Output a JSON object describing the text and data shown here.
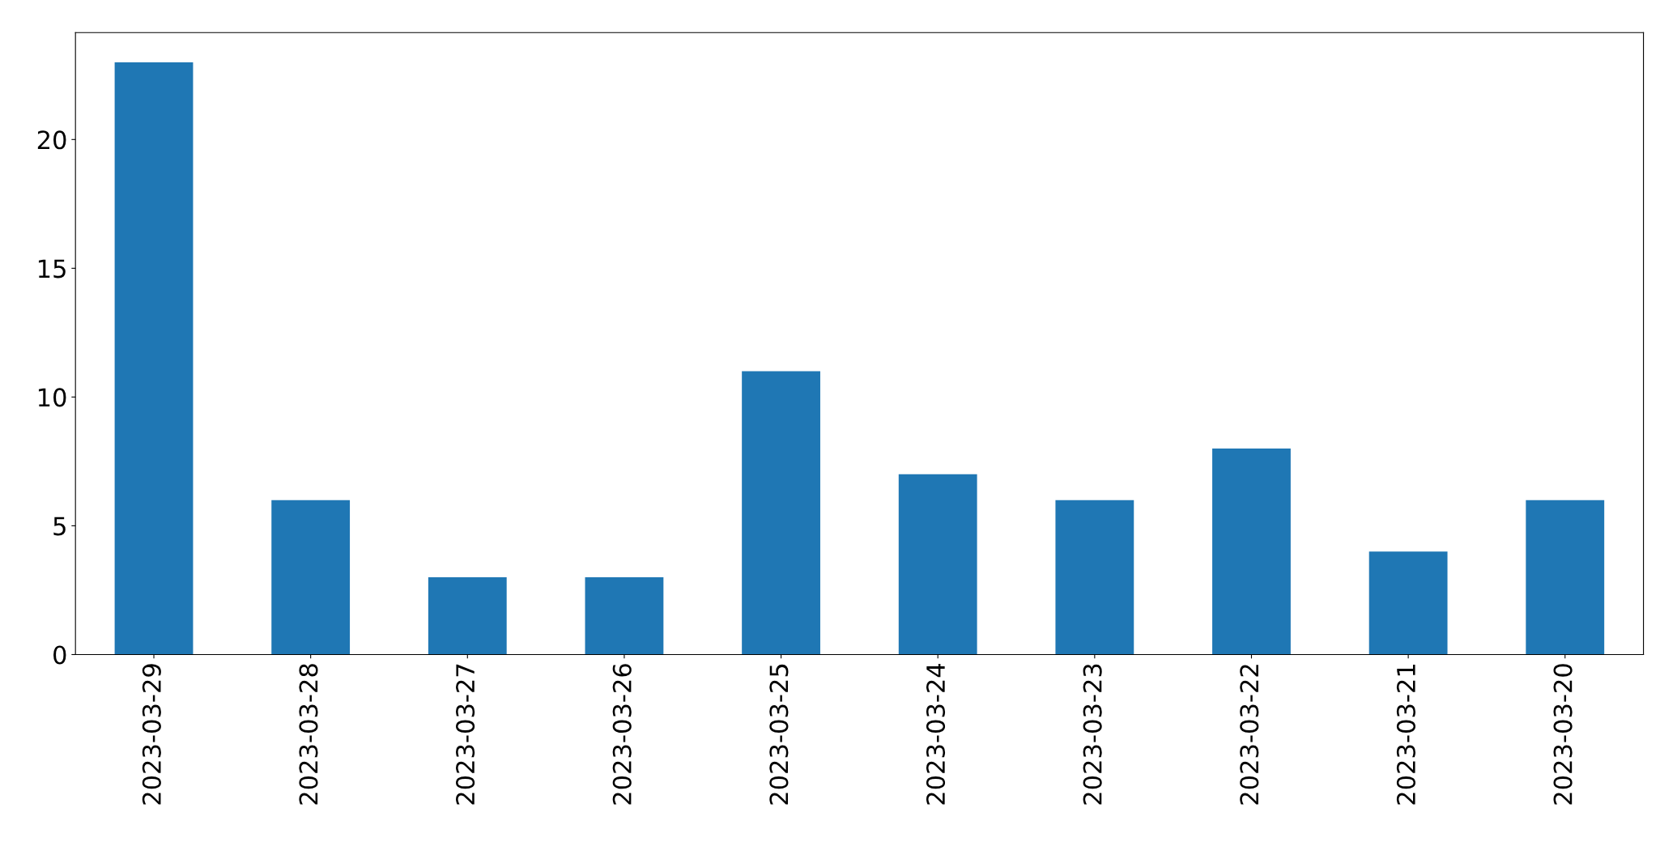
{
  "chart_data": {
    "type": "bar",
    "categories": [
      "2023-03-29",
      "2023-03-28",
      "2023-03-27",
      "2023-03-26",
      "2023-03-25",
      "2023-03-24",
      "2023-03-23",
      "2023-03-22",
      "2023-03-21",
      "2023-03-20"
    ],
    "values": [
      23,
      6,
      3,
      3,
      11,
      7,
      6,
      8,
      4,
      6
    ],
    "color": "#1f77b4",
    "ylim": [
      0,
      24.15
    ],
    "yticks": [
      0,
      5,
      10,
      15,
      20
    ],
    "grid": false,
    "legend": false
  }
}
